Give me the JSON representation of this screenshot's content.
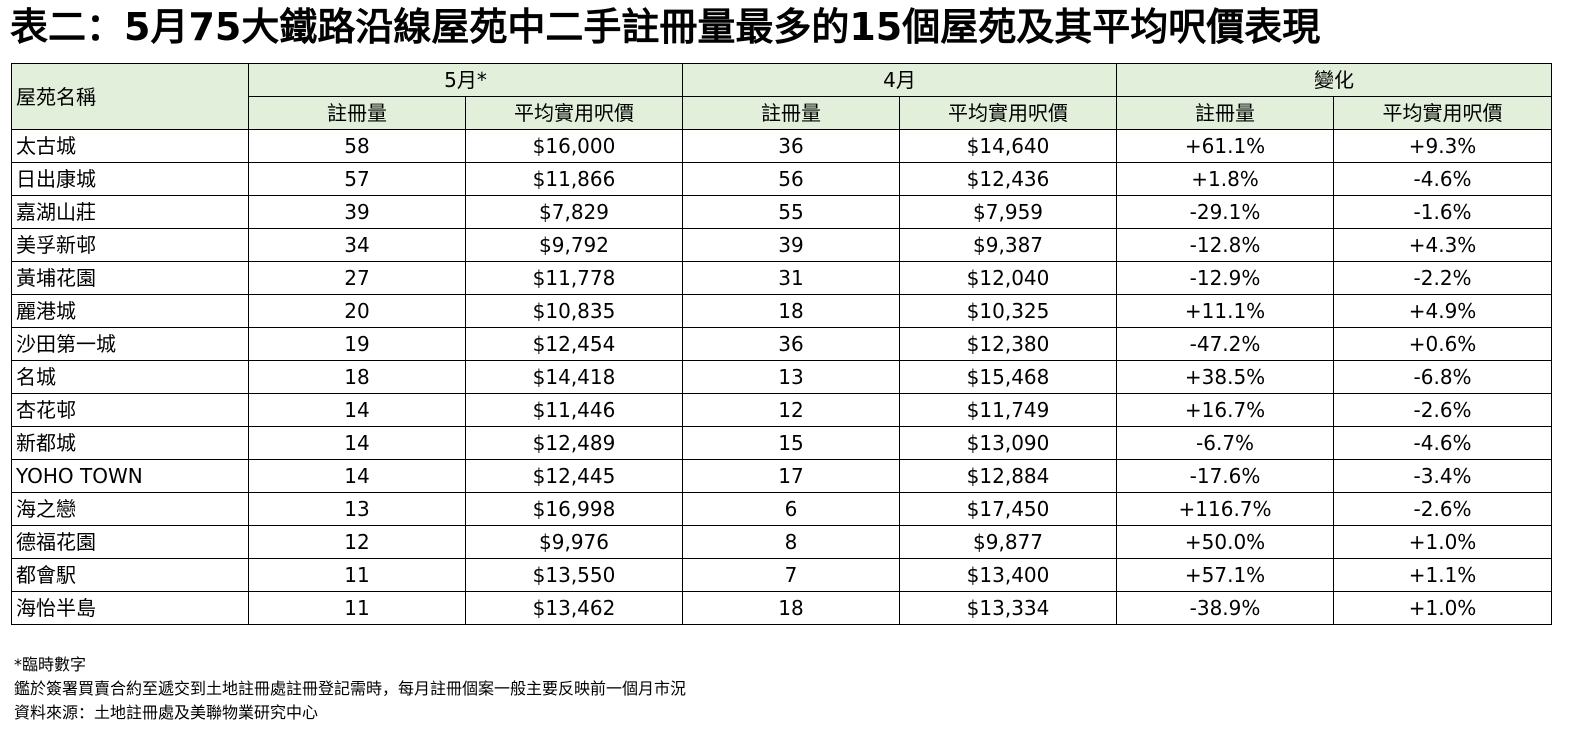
{
  "title": "表二：5月75大鐵路沿線屋苑中二手註冊量最多的15個屋苑及其平均呎價表現",
  "header": {
    "name_col": "屋苑名稱",
    "groups": [
      "5月*",
      "4月",
      "變化"
    ],
    "sub": [
      "註冊量",
      "平均實用呎價",
      "註冊量",
      "平均實用呎價",
      "註冊量",
      "平均實用呎價"
    ]
  },
  "colors": {
    "header_bg": "#e2efda",
    "border": "#000000"
  },
  "rows": [
    [
      "太古城",
      "58",
      "$16,000",
      "36",
      "$14,640",
      "+61.1%",
      "+9.3%"
    ],
    [
      "日出康城",
      "57",
      "$11,866",
      "56",
      "$12,436",
      "+1.8%",
      "-4.6%"
    ],
    [
      "嘉湖山莊",
      "39",
      "$7,829",
      "55",
      "$7,959",
      "-29.1%",
      "-1.6%"
    ],
    [
      "美孚新邨",
      "34",
      "$9,792",
      "39",
      "$9,387",
      "-12.8%",
      "+4.3%"
    ],
    [
      "黃埔花園",
      "27",
      "$11,778",
      "31",
      "$12,040",
      "-12.9%",
      "-2.2%"
    ],
    [
      "麗港城",
      "20",
      "$10,835",
      "18",
      "$10,325",
      "+11.1%",
      "+4.9%"
    ],
    [
      "沙田第一城",
      "19",
      "$12,454",
      "36",
      "$12,380",
      "-47.2%",
      "+0.6%"
    ],
    [
      "名城",
      "18",
      "$14,418",
      "13",
      "$15,468",
      "+38.5%",
      "-6.8%"
    ],
    [
      "杏花邨",
      "14",
      "$11,446",
      "12",
      "$11,749",
      "+16.7%",
      "-2.6%"
    ],
    [
      "新都城",
      "14",
      "$12,489",
      "15",
      "$13,090",
      "-6.7%",
      "-4.6%"
    ],
    [
      "YOHO TOWN",
      "14",
      "$12,445",
      "17",
      "$12,884",
      "-17.6%",
      "-3.4%"
    ],
    [
      "海之戀",
      "13",
      "$16,998",
      "6",
      "$17,450",
      "+116.7%",
      "-2.6%"
    ],
    [
      "德福花園",
      "12",
      "$9,976",
      "8",
      "$9,877",
      "+50.0%",
      "+1.0%"
    ],
    [
      "都會駅",
      "11",
      "$13,550",
      "7",
      "$13,400",
      "+57.1%",
      "+1.1%"
    ],
    [
      "海怡半島",
      "11",
      "$13,462",
      "18",
      "$13,334",
      "-38.9%",
      "+1.0%"
    ]
  ],
  "notes": [
    "*臨時數字",
    "鑑於簽署買賣合約至遞交到土地註冊處註冊登記需時，每月註冊個案一般主要反映前一個月市況",
    "資料來源：土地註冊處及美聯物業研究中心"
  ]
}
